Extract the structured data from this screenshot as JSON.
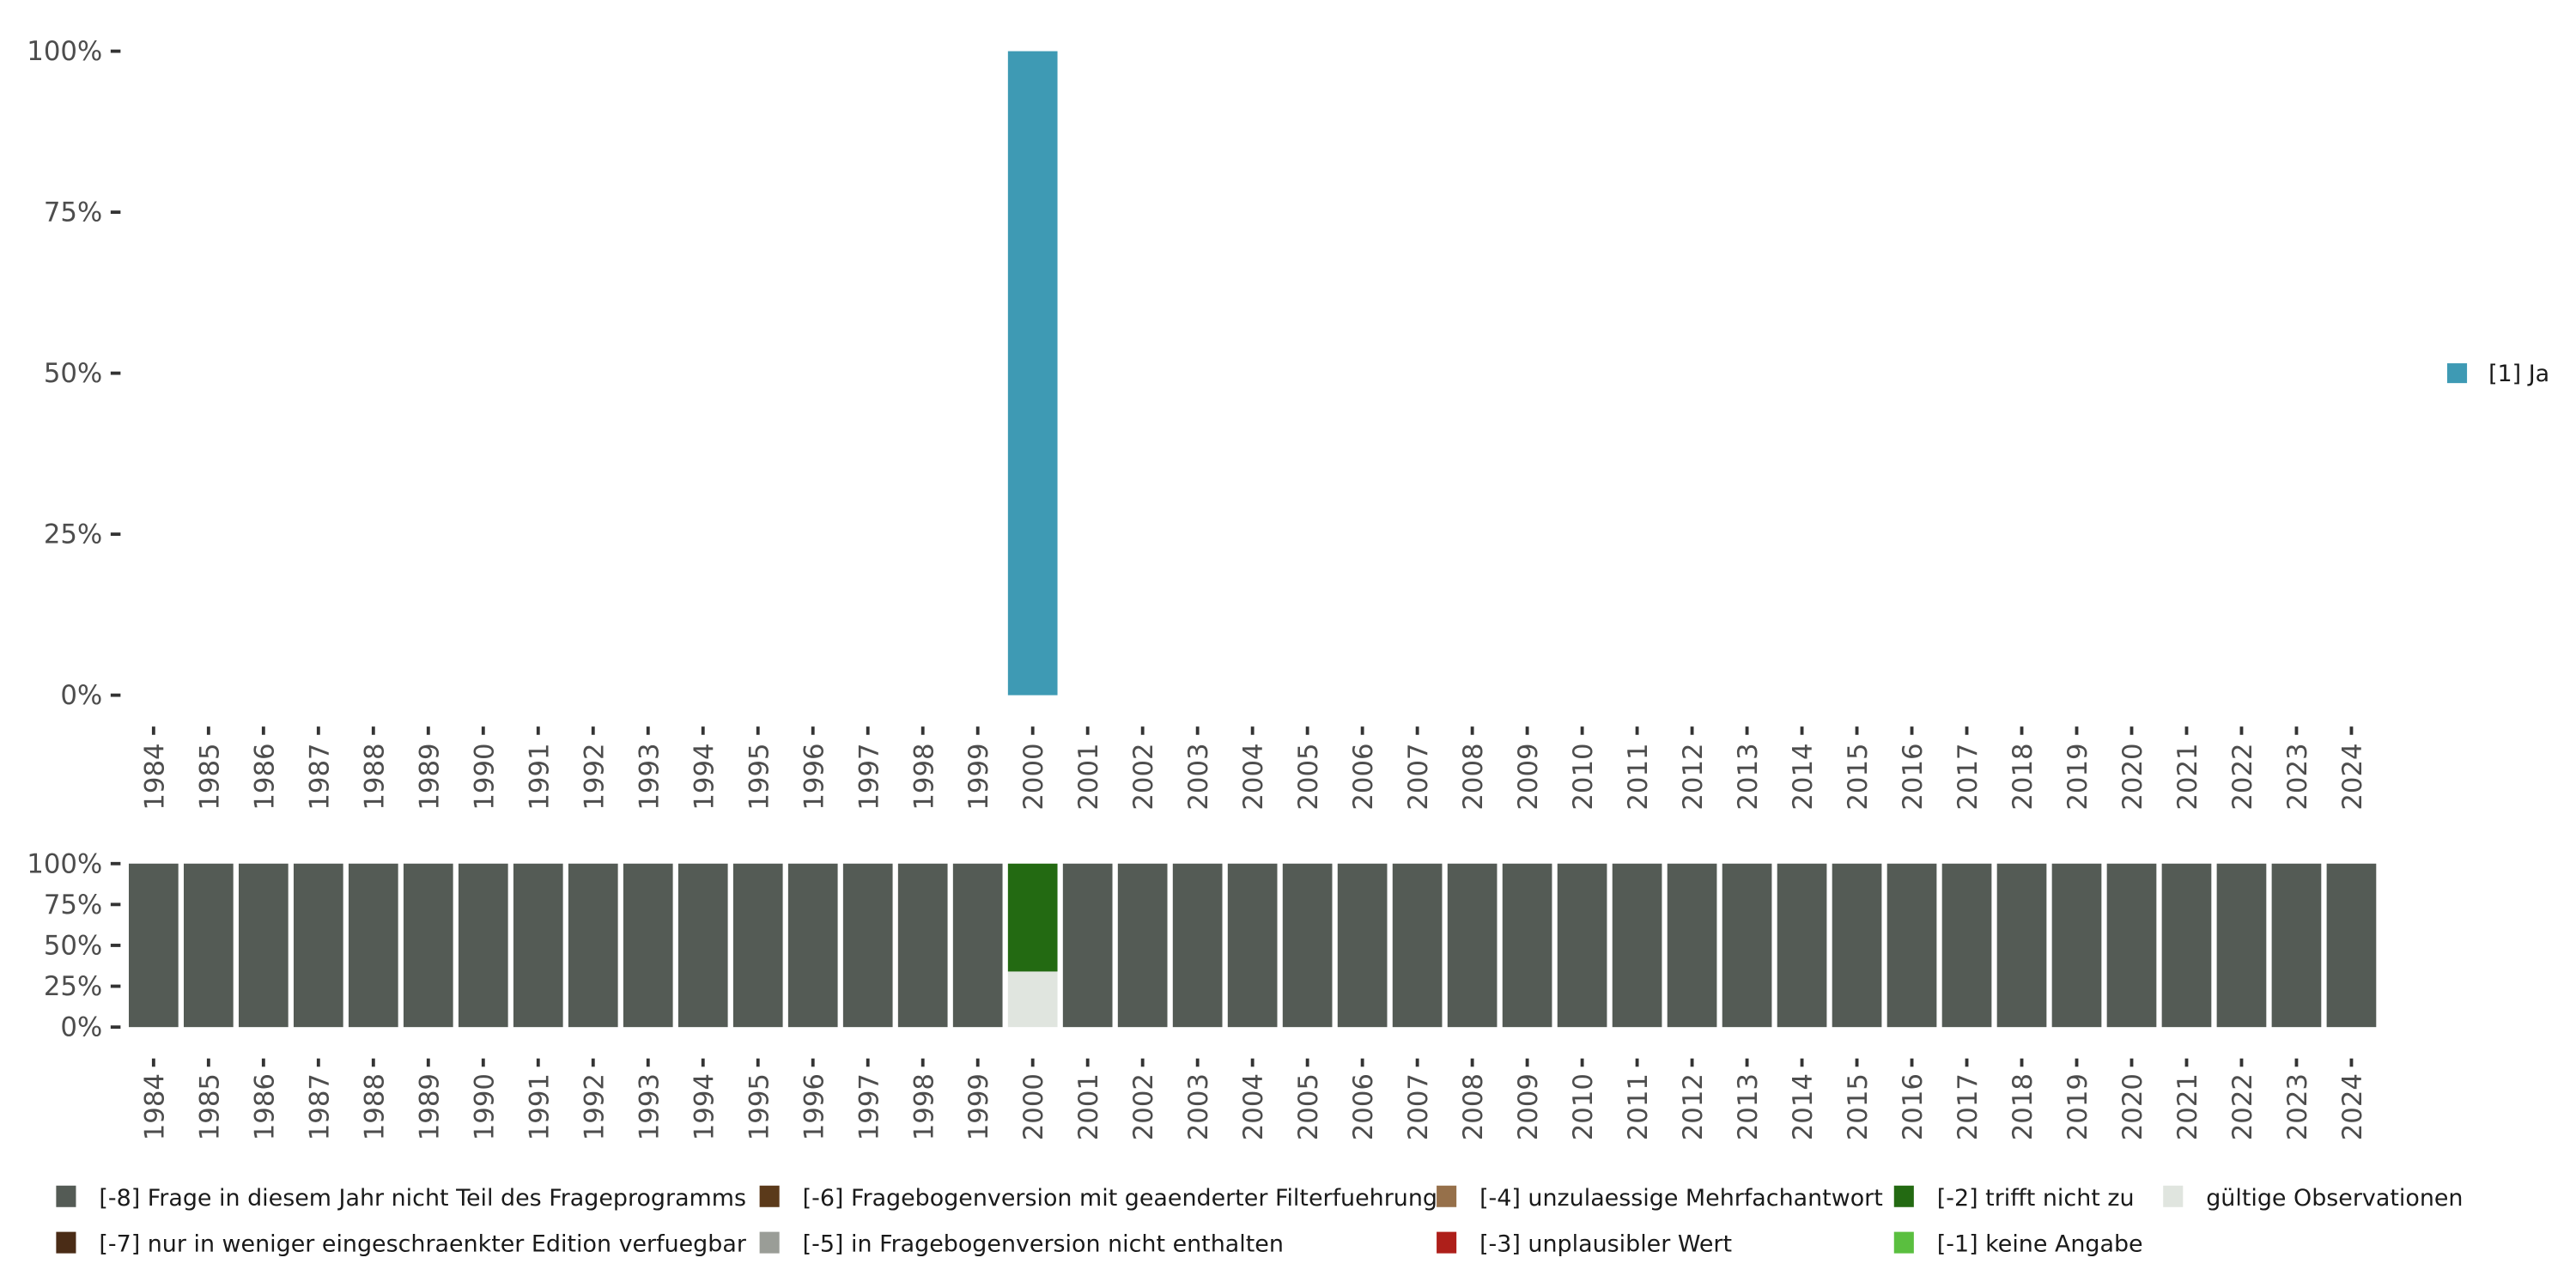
{
  "chart_data": [
    {
      "type": "bar",
      "stacked": true,
      "title": "",
      "xlabel": "",
      "ylabel": "",
      "ylim": [
        0,
        100
      ],
      "y_ticks": [
        "0%",
        "25%",
        "50%",
        "75%",
        "100%"
      ],
      "categories": [
        "1984",
        "1985",
        "1986",
        "1987",
        "1988",
        "1989",
        "1990",
        "1991",
        "1992",
        "1993",
        "1994",
        "1995",
        "1996",
        "1997",
        "1998",
        "1999",
        "2000",
        "2001",
        "2002",
        "2003",
        "2004",
        "2005",
        "2006",
        "2007",
        "2008",
        "2009",
        "2010",
        "2011",
        "2012",
        "2013",
        "2014",
        "2015",
        "2016",
        "2017",
        "2018",
        "2019",
        "2020",
        "2021",
        "2022",
        "2023",
        "2024"
      ],
      "series": [
        {
          "name": "[1] Ja",
          "color": "#3e9ab4",
          "values": {
            "2000": 100
          }
        }
      ],
      "legend": "right"
    },
    {
      "type": "bar",
      "stacked": true,
      "ylim": [
        0,
        100
      ],
      "y_ticks": [
        "0%",
        "25%",
        "50%",
        "75%",
        "100%"
      ],
      "categories": [
        "1984",
        "1985",
        "1986",
        "1987",
        "1988",
        "1989",
        "1990",
        "1991",
        "1992",
        "1993",
        "1994",
        "1995",
        "1996",
        "1997",
        "1998",
        "1999",
        "2000",
        "2001",
        "2002",
        "2003",
        "2004",
        "2005",
        "2006",
        "2007",
        "2008",
        "2009",
        "2010",
        "2011",
        "2012",
        "2013",
        "2014",
        "2015",
        "2016",
        "2017",
        "2018",
        "2019",
        "2020",
        "2021",
        "2022",
        "2023",
        "2024"
      ],
      "series": [
        {
          "name": "gültige Observationen",
          "color": "#e0e5df",
          "values": {
            "2000": 34
          }
        },
        {
          "name": "[-2] trifft nicht zu",
          "color": "#236a12",
          "values": {
            "2000": 66
          }
        },
        {
          "name": "[-8] Frage in diesem Jahr nicht Teil des Frageprogramms",
          "color": "#545b55",
          "values": {
            "all_except_2000": 100
          }
        }
      ],
      "legend": "bottom",
      "legend_items": [
        {
          "label": "[-8] Frage in diesem Jahr nicht Teil des Frageprogramms",
          "color": "#545b55"
        },
        {
          "label": "[-7] nur in weniger eingeschraenkter Edition verfuegbar",
          "color": "#4a2c16"
        },
        {
          "label": "[-6] Fragebogenversion mit geaenderter Filterfuehrung",
          "color": "#5b3a1a"
        },
        {
          "label": "[-5] in Fragebogenversion nicht enthalten",
          "color": "#9a9d97"
        },
        {
          "label": "[-4] unzulaessige Mehrfachantwort",
          "color": "#96704a"
        },
        {
          "label": "[-3] unplausibler Wert",
          "color": "#ae1f1a"
        },
        {
          "label": "[-2] trifft nicht zu",
          "color": "#236a12"
        },
        {
          "label": "[-1] keine Angabe",
          "color": "#5abf3f"
        },
        {
          "label": "gültige Observationen",
          "color": "#e0e5df"
        }
      ]
    }
  ]
}
